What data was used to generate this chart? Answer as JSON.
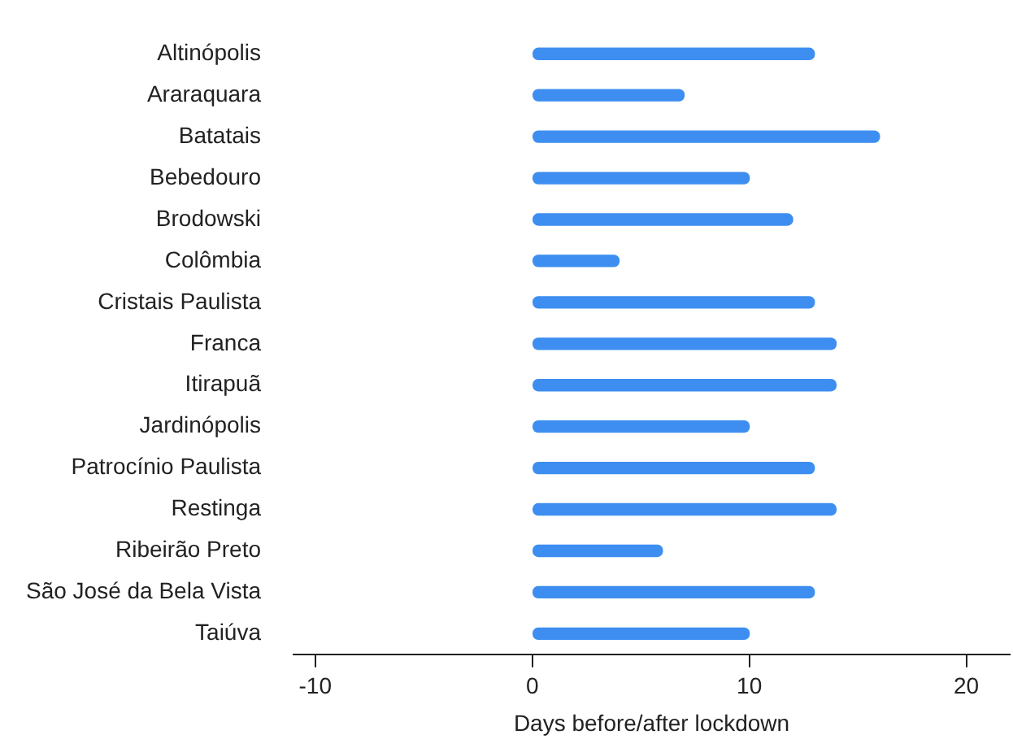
{
  "chart_data": {
    "type": "bar",
    "orientation": "horizontal",
    "xlabel": "Days before/after lockdown",
    "categories": [
      "Altinópolis",
      "Araraquara",
      "Batatais",
      "Bebedouro",
      "Brodowski",
      "Colômbia",
      "Cristais Paulista",
      "Franca",
      "Itirapuã",
      "Jardinópolis",
      "Patrocínio Paulista",
      "Restinga",
      "Ribeirão Preto",
      "São José da Bela Vista",
      "Taiúva"
    ],
    "values": [
      13,
      7,
      16,
      10,
      12,
      4,
      13,
      14,
      14,
      10,
      13,
      14,
      6,
      13,
      10
    ],
    "color": "#3d8ef0",
    "xlim": [
      -11,
      22
    ],
    "xticks": [
      -10,
      0,
      10,
      20
    ],
    "grid": false,
    "legend": false
  }
}
